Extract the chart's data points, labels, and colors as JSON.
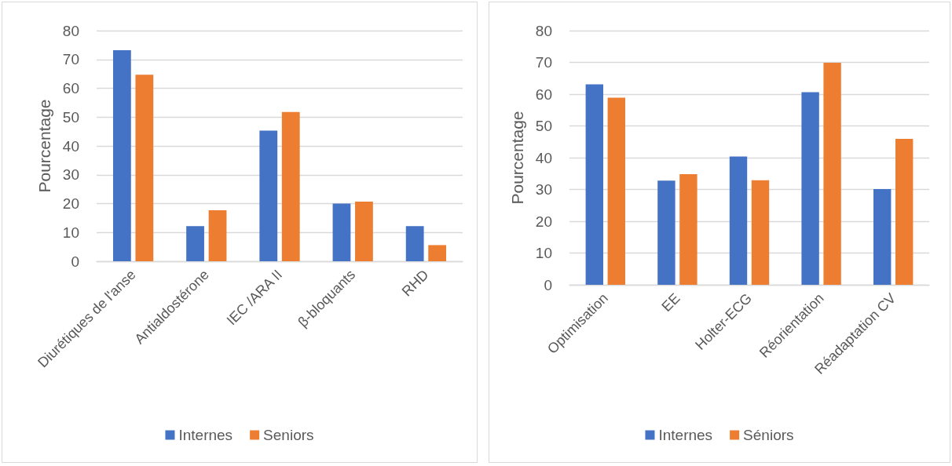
{
  "chart_data": [
    {
      "type": "bar",
      "ylabel": "Pourcentage",
      "categories": [
        "Diurétiques de l'anse",
        "Antialdostérone",
        "IEC /ARA II",
        "β-bloquants",
        "RHD"
      ],
      "series": [
        {
          "name": "Internes",
          "color": "#4472c4",
          "values": [
            73.2,
            12.2,
            45.3,
            20.0,
            12.2
          ]
        },
        {
          "name": "Seniors",
          "color": "#ed7d31",
          "values": [
            64.7,
            17.7,
            51.8,
            20.7,
            5.6
          ]
        }
      ],
      "ylim": [
        0,
        80
      ],
      "yticks": [
        0,
        10,
        20,
        30,
        40,
        50,
        60,
        70,
        80
      ],
      "grid": "y",
      "legend": "bottom"
    },
    {
      "type": "bar",
      "ylabel": "Pourcentage",
      "categories": [
        "Optimisation",
        "EE",
        "Holter-ECG",
        "Réorientation",
        "Réadaptation CV"
      ],
      "series": [
        {
          "name": "Internes",
          "color": "#4472c4",
          "values": [
            63.1,
            32.8,
            40.4,
            60.6,
            30.1
          ]
        },
        {
          "name": "Séniors",
          "color": "#ed7d31",
          "values": [
            58.9,
            34.8,
            32.9,
            69.9,
            45.9
          ]
        }
      ],
      "ylim": [
        0,
        80
      ],
      "yticks": [
        0,
        10,
        20,
        30,
        40,
        50,
        60,
        70,
        80
      ],
      "grid": "y",
      "legend": "bottom"
    }
  ]
}
